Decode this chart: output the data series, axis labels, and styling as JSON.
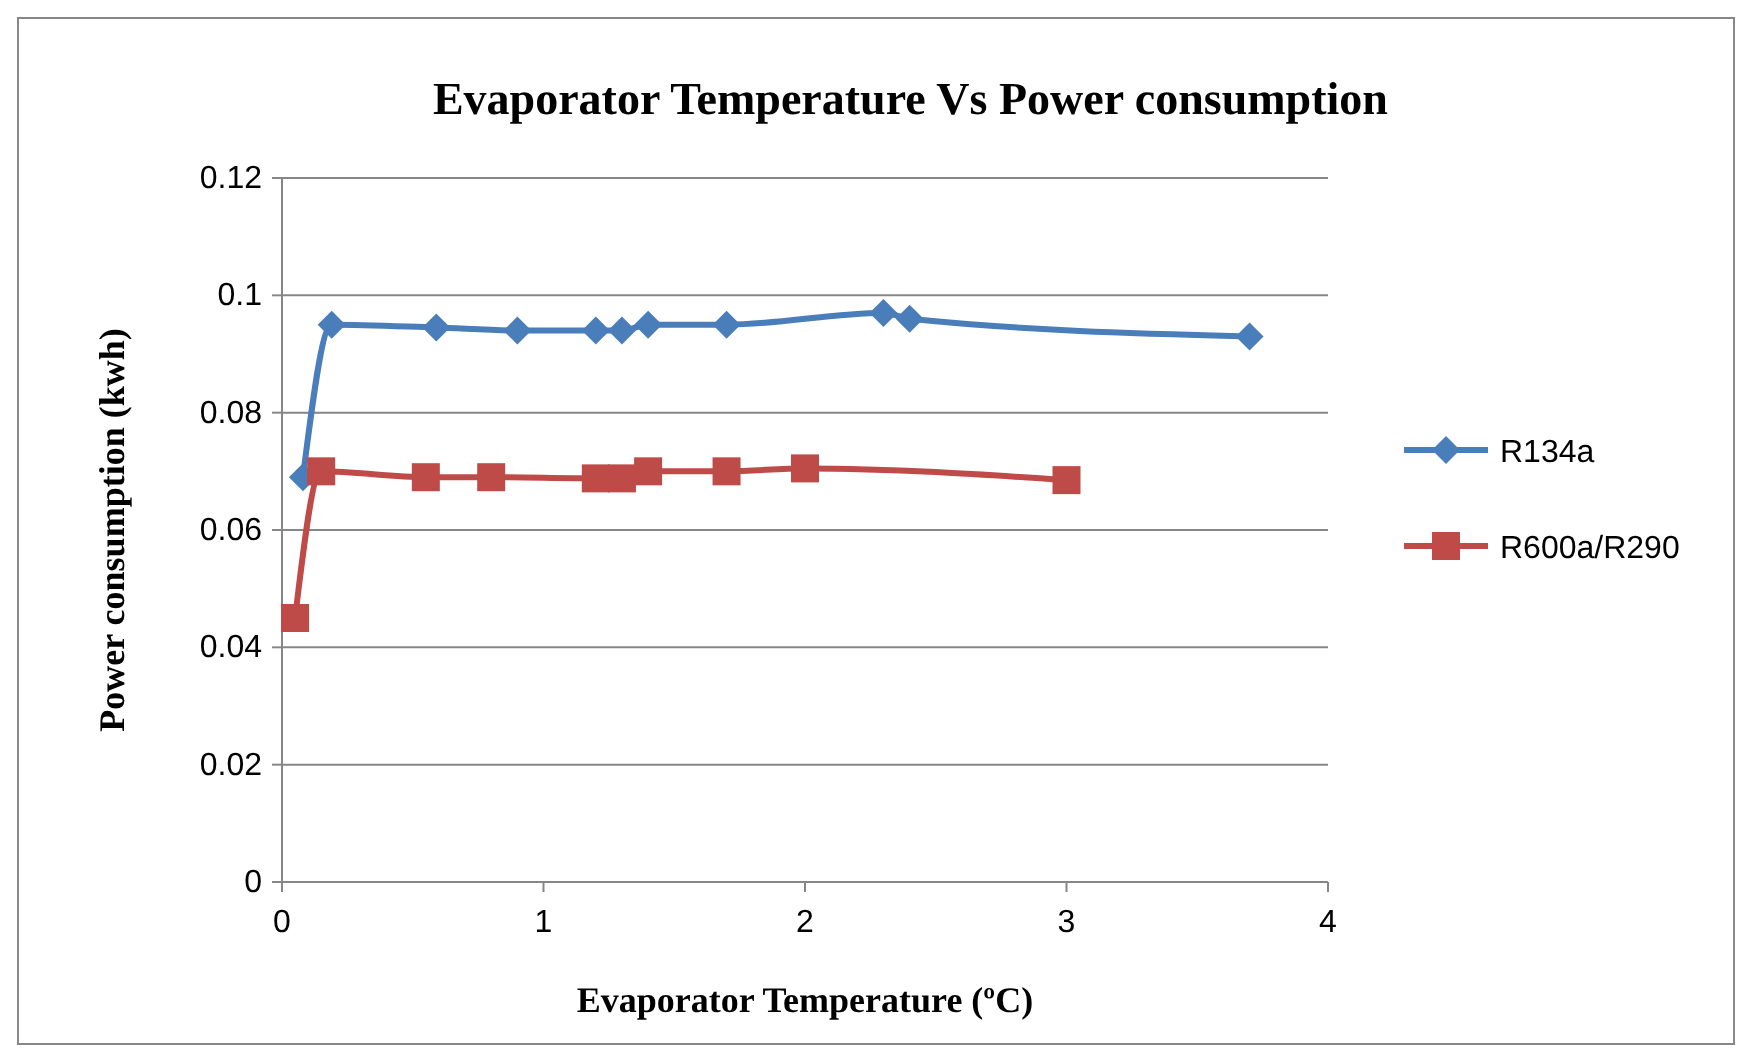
{
  "chart_data": {
    "type": "line",
    "title": "Evaporator Temperature Vs Power consumption",
    "xlabel": "Evaporator Temperature (ºC)",
    "ylabel": "Power consumption (kwh)",
    "xlim": [
      0,
      4
    ],
    "xticks": [
      0,
      1,
      2,
      3,
      4
    ],
    "ylim": [
      0,
      0.12
    ],
    "yticks": [
      0,
      0.02,
      0.04,
      0.06,
      0.08,
      0.1,
      0.12
    ],
    "grid": "y",
    "legend": "right",
    "series": [
      {
        "name": "R134a",
        "color": "#4a7ebb",
        "marker": "diamond",
        "x": [
          0.08,
          0.19,
          0.59,
          0.9,
          1.2,
          1.3,
          1.4,
          1.7,
          2.3,
          2.4,
          3.7
        ],
        "values": [
          0.069,
          0.095,
          0.0945,
          0.094,
          0.094,
          0.094,
          0.095,
          0.095,
          0.097,
          0.096,
          0.093
        ]
      },
      {
        "name": "R600a/R290",
        "color": "#be4b48",
        "marker": "square",
        "x": [
          0.05,
          0.15,
          0.55,
          0.8,
          1.2,
          1.3,
          1.4,
          1.7,
          2.0,
          3.0
        ],
        "values": [
          0.045,
          0.07,
          0.069,
          0.069,
          0.0688,
          0.0688,
          0.07,
          0.07,
          0.0705,
          0.0685
        ]
      }
    ]
  }
}
